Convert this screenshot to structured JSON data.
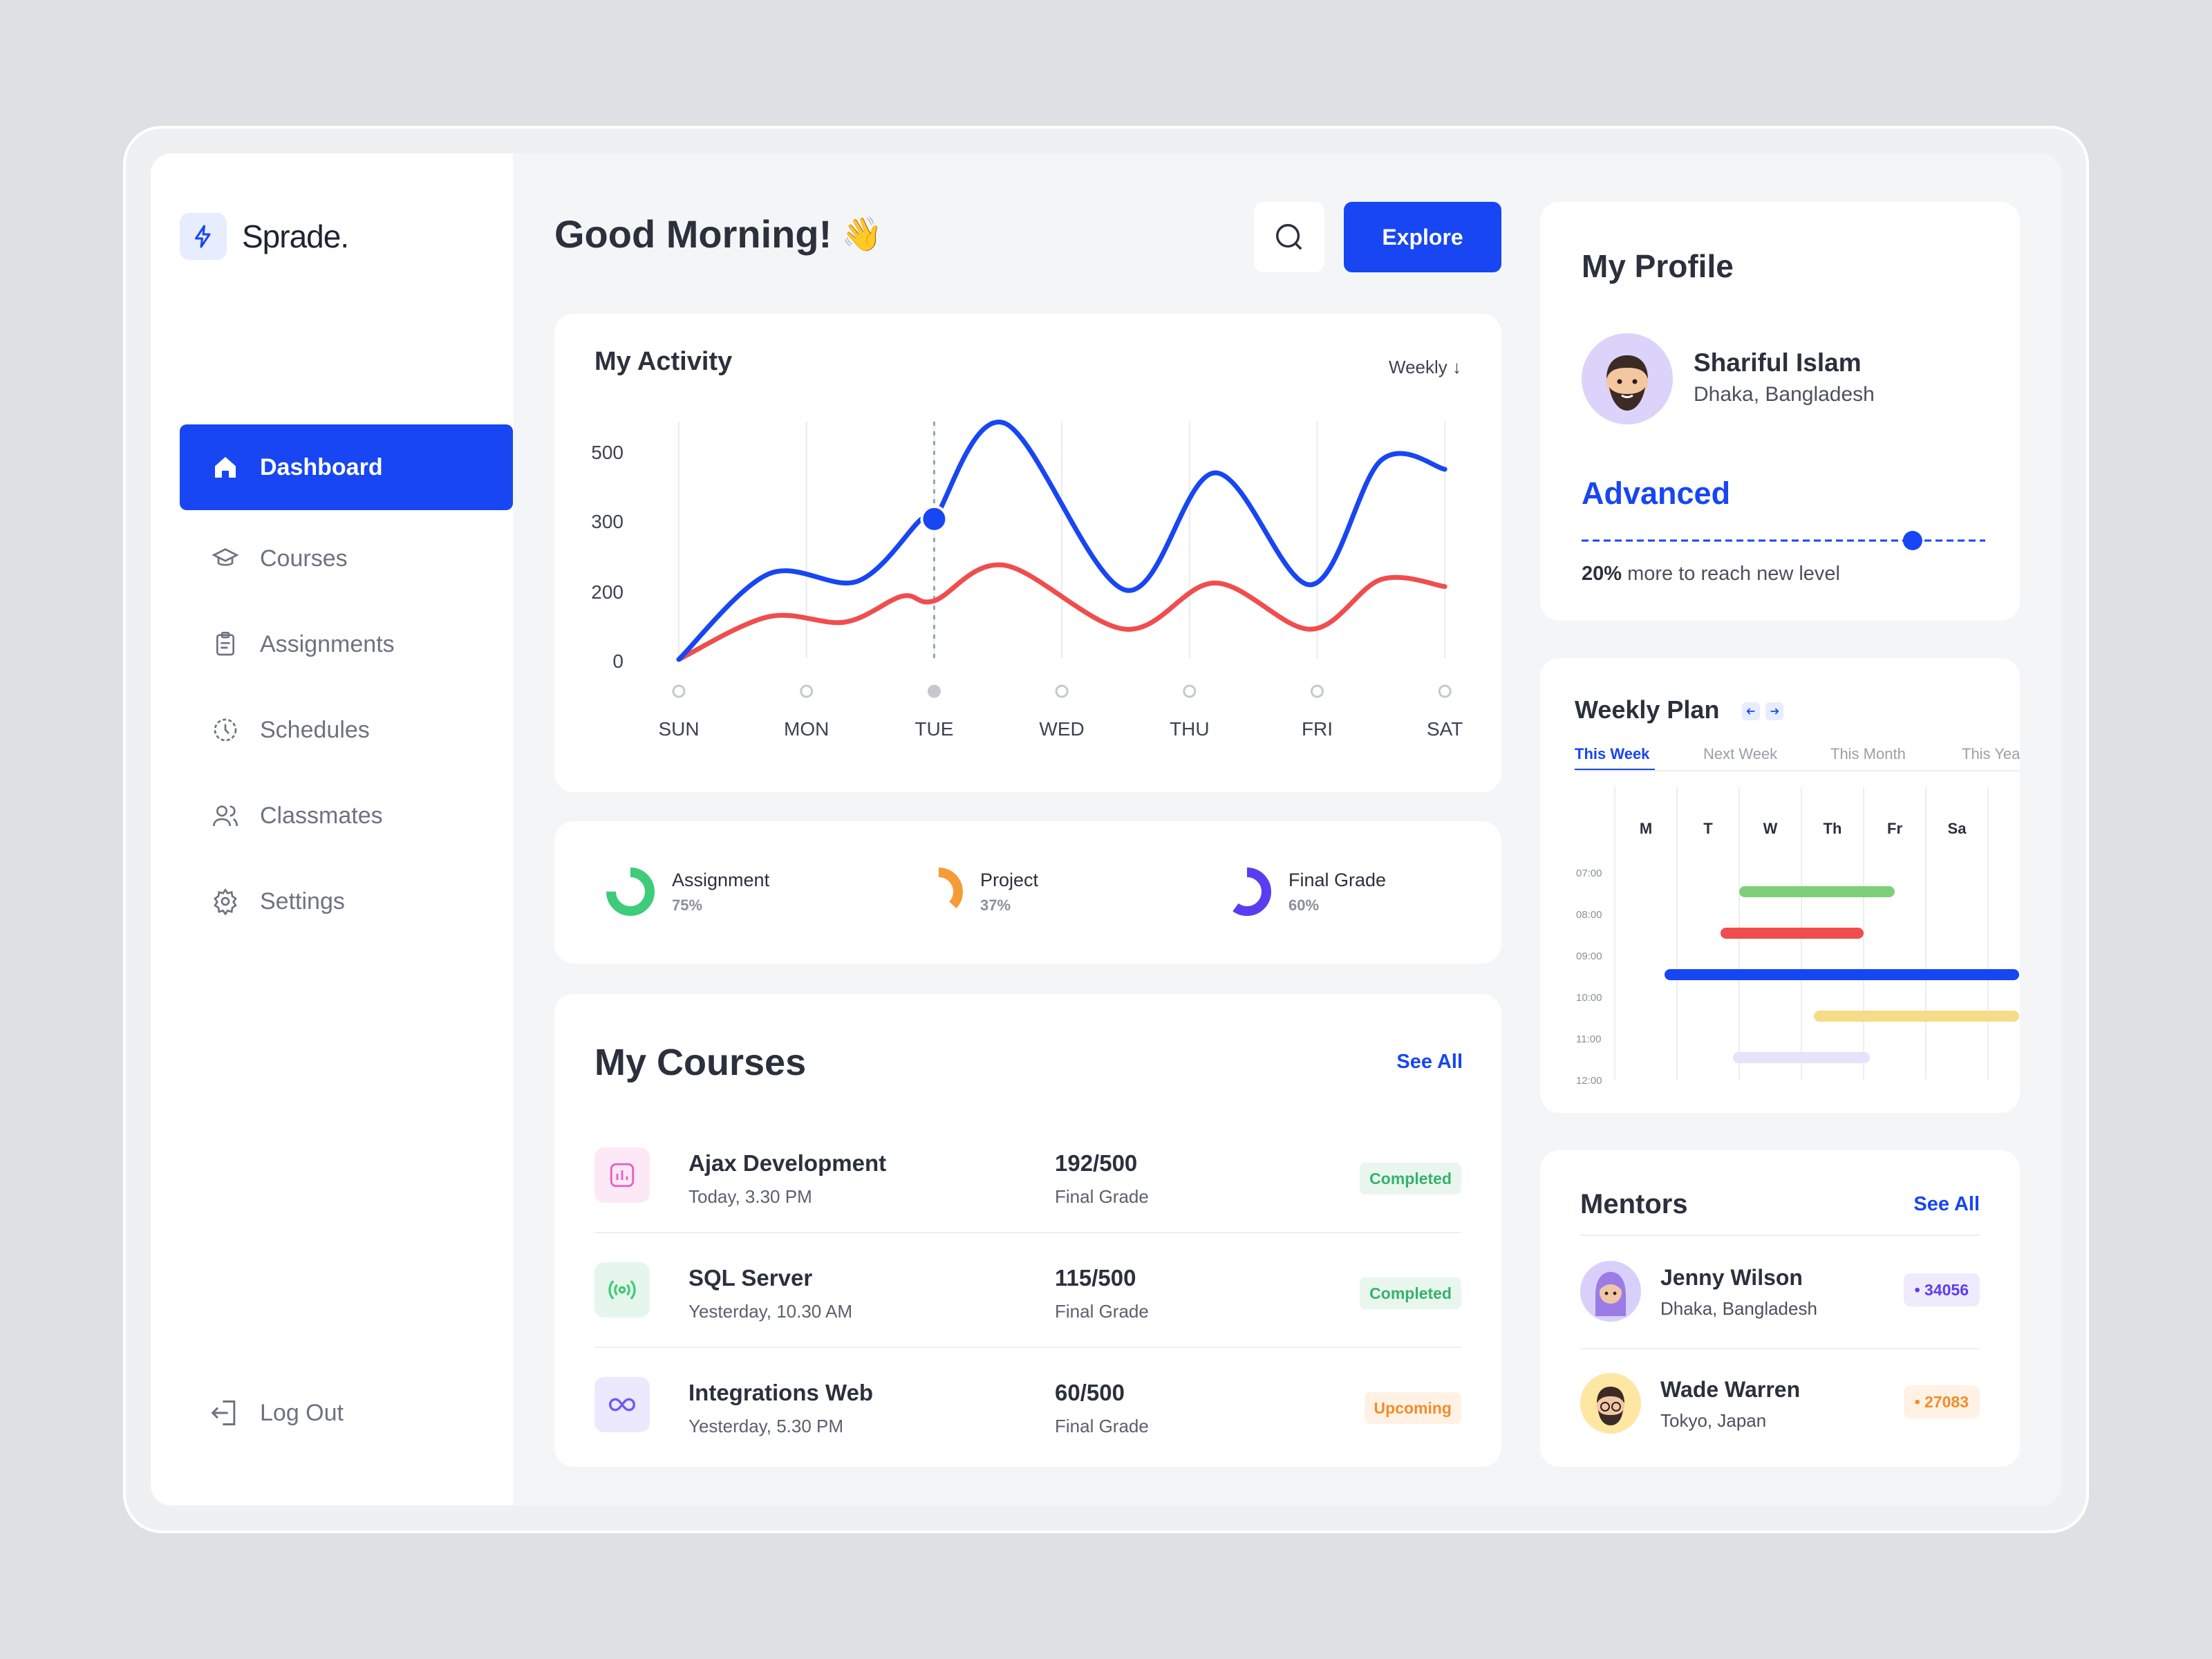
{
  "brand": {
    "name": "Sprade."
  },
  "nav": {
    "items": [
      {
        "label": "Dashboard",
        "icon": "home-icon"
      },
      {
        "label": "Courses",
        "icon": "graduation-cap-icon"
      },
      {
        "label": "Assignments",
        "icon": "clipboard-icon"
      },
      {
        "label": "Schedules",
        "icon": "clock-icon"
      },
      {
        "label": "Classmates",
        "icon": "users-icon"
      },
      {
        "label": "Settings",
        "icon": "gear-icon"
      }
    ],
    "logout": "Log Out"
  },
  "header": {
    "greeting": "Good Morning!",
    "wave": "👋",
    "explore": "Explore"
  },
  "activity": {
    "title": "My Activity",
    "period": "Weekly ↓",
    "chart_data": {
      "type": "line",
      "x": [
        "SUN",
        "MON",
        "TUE",
        "WED",
        "THU",
        "FRI",
        "SAT"
      ],
      "yticks": [
        0,
        200,
        300,
        500
      ],
      "series": [
        {
          "color": "#1746f2",
          "highlight_index": 2,
          "points": [
            [
              0,
              0
            ],
            [
              0.7,
              240
            ],
            [
              1.4,
              220
            ],
            [
              1.9,
              395
            ],
            [
              2,
              395
            ],
            [
              2.55,
              665
            ],
            [
              3.5,
              195
            ],
            [
              4.2,
              525
            ],
            [
              4.95,
              210
            ],
            [
              5.5,
              560
            ],
            [
              6,
              535
            ]
          ]
        },
        {
          "color": "#f04d4d",
          "points": [
            [
              0,
              0
            ],
            [
              0.7,
              120
            ],
            [
              1.3,
              105
            ],
            [
              1.75,
              178
            ],
            [
              2,
              165
            ],
            [
              2.55,
              265
            ],
            [
              3.5,
              85
            ],
            [
              4.2,
              215
            ],
            [
              4.95,
              85
            ],
            [
              5.5,
              225
            ],
            [
              6,
              205
            ]
          ]
        }
      ]
    }
  },
  "progress": [
    {
      "label": "Assignment",
      "value": "75%",
      "pct": 75,
      "color": "#3ecb7a",
      "bg": "#eaf6ee"
    },
    {
      "label": "Project",
      "value": "37%",
      "pct": 37,
      "color": "#f59c38",
      "bg": "#fff3e8"
    },
    {
      "label": "Final Grade",
      "value": "60%",
      "pct": 60,
      "color": "#5a3df0",
      "bg": "#efebfd"
    }
  ],
  "courses": {
    "title": "My Courses",
    "see_all": "See All",
    "items": [
      {
        "name": "Ajax Development",
        "time": "Today, 3.30 PM",
        "grade": "192/500",
        "grade_label": "Final Grade",
        "status": "Completed",
        "icon": "chart-icon"
      },
      {
        "name": "SQL Server",
        "time": "Yesterday, 10.30 AM",
        "grade": "115/500",
        "grade_label": "Final Grade",
        "status": "Completed",
        "icon": "broadcast-icon"
      },
      {
        "name": "Integrations Web",
        "time": "Yesterday, 5.30 PM",
        "grade": "60/500",
        "grade_label": "Final Grade",
        "status": "Upcoming",
        "icon": "infinity-icon"
      }
    ]
  },
  "profile": {
    "title": "My Profile",
    "name": "Shariful Islam",
    "location": "Dhaka, Bangladesh",
    "level": "Advanced",
    "level_progress": 0.82,
    "note_bold": "20%",
    "note_rest": " more to reach new level"
  },
  "plan": {
    "title": "Weekly Plan",
    "tabs": [
      "This Week",
      "Next Week",
      "This Month",
      "This Year"
    ],
    "days": [
      "M",
      "T",
      "W",
      "Th",
      "Fr",
      "Sa"
    ],
    "times": [
      "07:00",
      "08:00",
      "09:00",
      "10:00",
      "11:00",
      "12:00"
    ],
    "events": [
      {
        "color": "#7fcf7a",
        "start_day": 2,
        "end_day": 4.5,
        "slot": 0.5
      },
      {
        "color": "#f04d4d",
        "start_day": 1.7,
        "end_day": 4,
        "slot": 1.5
      },
      {
        "color": "#1746f2",
        "start_day": 0.8,
        "end_day": 6.5,
        "slot": 2.5
      },
      {
        "color": "#f6dc88",
        "start_day": 3.2,
        "end_day": 6.5,
        "slot": 3.5
      },
      {
        "color": "#e6e2fb",
        "start_day": 1.9,
        "end_day": 4.1,
        "slot": 4.5
      }
    ]
  },
  "mentors": {
    "title": "Mentors",
    "see_all": "See All",
    "items": [
      {
        "name": "Jenny Wilson",
        "location": "Dhaka, Bangladesh",
        "score": "• 34056",
        "color": "#5a3df0",
        "bg": "#efebfd"
      },
      {
        "name": "Wade Warren",
        "location": "Tokyo, Japan",
        "score": "• 27083",
        "color": "#f28c2a",
        "bg": "#fff2e5"
      }
    ]
  }
}
